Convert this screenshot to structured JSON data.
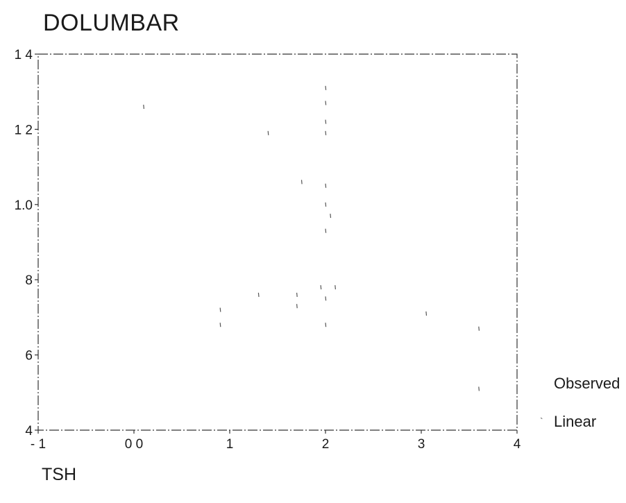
{
  "chart_data": {
    "type": "scatter",
    "title": "DOLUMBAR",
    "xlabel": "TSH",
    "ylabel": "",
    "xlim": [
      -1,
      4
    ],
    "ylim": [
      4,
      14
    ],
    "x_tick_labels": [
      "- 1",
      "0 0",
      "1",
      "2",
      "3",
      "4"
    ],
    "y_tick_labels": [
      "4",
      "6",
      "8",
      "1.0",
      "1 2",
      "1 4"
    ],
    "legend": [
      "Observed",
      "Linear"
    ],
    "legend_position": "right",
    "grid": false,
    "series": [
      {
        "name": "Observed",
        "points": [
          {
            "x": 0.1,
            "y": 12.6
          },
          {
            "x": 1.4,
            "y": 11.9
          },
          {
            "x": 2.0,
            "y": 13.1
          },
          {
            "x": 2.0,
            "y": 12.7
          },
          {
            "x": 2.0,
            "y": 12.2
          },
          {
            "x": 2.0,
            "y": 11.9
          },
          {
            "x": 1.75,
            "y": 10.6
          },
          {
            "x": 2.0,
            "y": 10.5
          },
          {
            "x": 2.0,
            "y": 10.0
          },
          {
            "x": 2.05,
            "y": 9.7
          },
          {
            "x": 2.0,
            "y": 9.3
          },
          {
            "x": 0.9,
            "y": 7.2
          },
          {
            "x": 0.9,
            "y": 6.8
          },
          {
            "x": 1.3,
            "y": 7.6
          },
          {
            "x": 1.7,
            "y": 7.6
          },
          {
            "x": 1.7,
            "y": 7.3
          },
          {
            "x": 1.95,
            "y": 7.8
          },
          {
            "x": 2.0,
            "y": 7.5
          },
          {
            "x": 2.1,
            "y": 7.8
          },
          {
            "x": 2.0,
            "y": 6.8
          },
          {
            "x": 3.05,
            "y": 7.1
          },
          {
            "x": 3.6,
            "y": 6.7
          },
          {
            "x": 3.6,
            "y": 5.1
          }
        ]
      }
    ]
  }
}
